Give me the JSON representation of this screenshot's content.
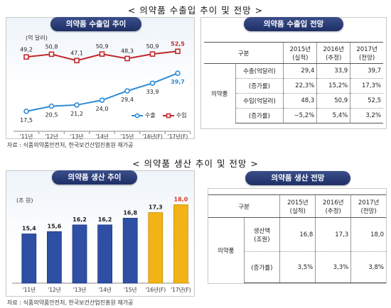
{
  "top_title": "< 의약품 수출입 추이 및 전망 >",
  "bottom_title": "< 의약품 생산 추이 및 전망 >",
  "source_top": "자료 : 식품의약품안전처, 한국보건산업진흥원 재가공",
  "source_bottom": "자료 : 식품의약품안전처, 한국보건산업진흥원 재가공",
  "trade_chart_title": "의약품 수출입 추이",
  "trade_table_title": "의약품 수출입 전망",
  "prod_chart_title": "의약품 생산 추이",
  "prod_table_title": "의약품 생산 전망",
  "colors": {
    "export": "#2e8bd6",
    "import": "#c0272d",
    "bar_blue": "#2e4fa3",
    "bar_gold": "#f1b315"
  },
  "chart_data": [
    {
      "type": "line",
      "title": "의약품 수출입 추이",
      "unit": "(억 달러)",
      "categories": [
        "'11년",
        "'12년",
        "'13년",
        "'14년",
        "'15년",
        "'16년(F)",
        "'17년(F)"
      ],
      "series": [
        {
          "name": "수출",
          "values": [
            17.5,
            20.5,
            21.2,
            24.0,
            29.4,
            33.9,
            39.7
          ],
          "labels": [
            "17,5",
            "20,5",
            "21,2",
            "24,0",
            "29,4",
            "33,9",
            "39,7"
          ]
        },
        {
          "name": "수입",
          "values": [
            49.2,
            50.8,
            47.1,
            50.9,
            48.3,
            50.9,
            52.5
          ],
          "labels": [
            "49,2",
            "50,8",
            "47,1",
            "50,9",
            "48,3",
            "50,9",
            "52,5"
          ]
        }
      ],
      "grid": false,
      "legend": "bottom-right"
    },
    {
      "type": "bar",
      "title": "의약품 생산 추이",
      "unit": "(조 원)",
      "categories": [
        "'11년",
        "'12년",
        "'13년",
        "'14년",
        "'15년",
        "'16년(F)",
        "'17년(F)"
      ],
      "values": [
        15.4,
        15.6,
        16.2,
        16.2,
        16.8,
        17.3,
        18.0
      ],
      "labels": [
        "15,4",
        "15,6",
        "16,2",
        "16,2",
        "16,8",
        "17,3",
        "18,0"
      ],
      "forecast_from_index": 5,
      "grid": false
    }
  ],
  "trade_table": {
    "header": {
      "group": "구분",
      "y2015": "2015년",
      "y2015_sub": "(실적)",
      "y2016": "2016년",
      "y2016_sub": "(추정)",
      "y2017": "2017년",
      "y2017_sub": "(전망)"
    },
    "category": "의약품",
    "rows": [
      {
        "label": "수출(억달러)",
        "v1": "29,4",
        "v2": "33,9",
        "v3": "39,7"
      },
      {
        "label": "(증가률)",
        "v1": "22,3%",
        "v2": "15,2%",
        "v3": "17,3%"
      },
      {
        "label": "수입(억달러)",
        "v1": "48,3",
        "v2": "50,9",
        "v3": "52,5"
      },
      {
        "label": "(증가률)",
        "v1": "−5,2%",
        "v2": "5,4%",
        "v3": "3,2%"
      }
    ]
  },
  "prod_table": {
    "header": {
      "group": "구분",
      "y2015": "2015년",
      "y2015_sub": "(실적)",
      "y2016": "2016년",
      "y2016_sub": "(추정)",
      "y2017": "2017년",
      "y2017_sub": "(전망)"
    },
    "category": "의약품",
    "rows": [
      {
        "label": "생산액",
        "label2": "(조원)",
        "v1": "16,8",
        "v2": "17,3",
        "v3": "18,0"
      },
      {
        "label": "(증가률)",
        "v1": "3,5%",
        "v2": "3,3%",
        "v3": "3,8%"
      }
    ]
  }
}
